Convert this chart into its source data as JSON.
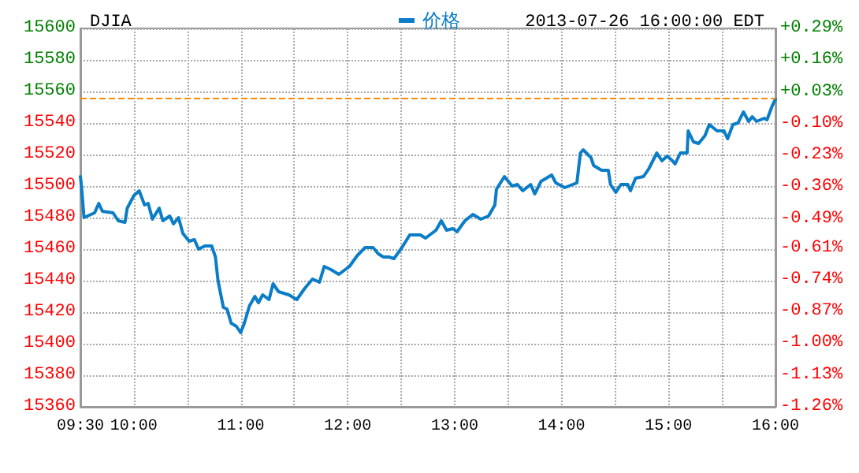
{
  "chart_data": {
    "type": "line",
    "title": "DJIA",
    "subtitle": "2013-07-26 16:00:00 EDT",
    "legend": "top",
    "grid": true,
    "marker": "none",
    "line_style": "solid",
    "x": [
      9.5,
      9.51,
      9.534,
      9.633,
      9.672,
      9.706,
      9.805,
      9.854,
      9.917,
      9.938,
      10.001,
      10.05,
      10.1,
      10.134,
      10.174,
      10.237,
      10.271,
      10.336,
      10.37,
      10.418,
      10.458,
      10.517,
      10.566,
      10.605,
      10.664,
      10.728,
      10.763,
      10.787,
      10.837,
      10.871,
      10.91,
      10.959,
      10.999,
      11.033,
      11.081,
      11.132,
      11.165,
      11.205,
      11.264,
      11.302,
      11.353,
      11.45,
      11.524,
      11.597,
      11.671,
      11.736,
      11.78,
      11.843,
      11.917,
      12.016,
      12.09,
      12.163,
      12.237,
      12.286,
      12.334,
      12.384,
      12.433,
      12.507,
      12.58,
      12.679,
      12.728,
      12.826,
      12.875,
      12.924,
      12.983,
      13.022,
      13.096,
      13.17,
      13.244,
      13.317,
      13.376,
      13.391,
      13.465,
      13.538,
      13.587,
      13.637,
      13.711,
      13.749,
      13.808,
      13.858,
      13.907,
      13.946,
      14.029,
      14.143,
      14.176,
      14.202,
      14.275,
      14.3,
      14.374,
      14.437,
      14.457,
      14.507,
      14.555,
      14.619,
      14.644,
      14.692,
      14.766,
      14.816,
      14.89,
      14.938,
      14.987,
      15.037,
      15.061,
      15.111,
      15.174,
      15.184,
      15.233,
      15.282,
      15.341,
      15.381,
      15.454,
      15.518,
      15.553,
      15.602,
      15.65,
      15.7,
      15.749,
      15.783,
      15.823,
      15.896,
      15.921,
      15.97,
      16
    ],
    "series": [
      {
        "name": "价格",
        "color": "#0b7dc7",
        "values": [
          15506,
          15500,
          15480,
          15483,
          15489,
          15484,
          15483,
          15478,
          15477,
          15486,
          15494,
          15497,
          15488,
          15489,
          15479,
          15486,
          15478,
          15481,
          15476,
          15480,
          15470,
          15465,
          15466,
          15460,
          15462,
          15462,
          15455,
          15440,
          15423,
          15422,
          15413,
          15411,
          15407,
          15413,
          15424,
          15430,
          15426,
          15431,
          15428,
          15438,
          15433,
          15431,
          15428,
          15435,
          15441,
          15439,
          15449,
          15447,
          15444,
          15449,
          15456,
          15461,
          15461,
          15457,
          15455,
          15455,
          15454,
          15461,
          15469,
          15469,
          15467,
          15472,
          15478,
          15472,
          15473,
          15471,
          15478,
          15482,
          15479,
          15481,
          15488,
          15498,
          15506,
          15500,
          15501,
          15497,
          15501,
          15495,
          15503,
          15505,
          15507,
          15502,
          15499,
          15502,
          15521,
          15523,
          15518,
          15513,
          15510,
          15510,
          15501,
          15496,
          15501,
          15501,
          15497,
          15505,
          15506,
          15511,
          15521,
          15516,
          15519,
          15516,
          15514,
          15521,
          15521,
          15535,
          15528,
          15527,
          15532,
          15539,
          15535,
          15535,
          15530,
          15539,
          15540,
          15547,
          15541,
          15544,
          15541,
          15543,
          15542,
          15551,
          15555
        ]
      }
    ],
    "xlim": [
      9.5,
      16
    ],
    "xticks": [
      {
        "value": 9.5,
        "label": "09:30"
      },
      {
        "value": 10,
        "label": "10:00"
      },
      {
        "value": 10.5,
        "label": null
      },
      {
        "value": 11,
        "label": "11:00"
      },
      {
        "value": 11.5,
        "label": null
      },
      {
        "value": 12,
        "label": "12:00"
      },
      {
        "value": 12.5,
        "label": null
      },
      {
        "value": 13,
        "label": "13:00"
      },
      {
        "value": 13.5,
        "label": null
      },
      {
        "value": 14,
        "label": "14:00"
      },
      {
        "value": 14.5,
        "label": null
      },
      {
        "value": 15,
        "label": "15:00"
      },
      {
        "value": 15.5,
        "label": null
      },
      {
        "value": 16,
        "label": "16:00"
      }
    ],
    "ylim": [
      15360,
      15600
    ],
    "yticks": [
      15360,
      15380,
      15400,
      15420,
      15440,
      15460,
      15480,
      15500,
      15520,
      15540,
      15560,
      15580,
      15600
    ],
    "y2lim": [
      -1.26,
      0.29
    ],
    "y2ticks": [
      {
        "value": -1.26,
        "label": "-1.26%"
      },
      {
        "value": -1.13,
        "label": "-1.13%"
      },
      {
        "value": -1.0,
        "label": "-1.00%"
      },
      {
        "value": -0.87,
        "label": "-0.87%"
      },
      {
        "value": -0.74,
        "label": "-0.74%"
      },
      {
        "value": -0.61,
        "label": "-0.61%"
      },
      {
        "value": -0.49,
        "label": "-0.49%"
      },
      {
        "value": -0.36,
        "label": "-0.36%"
      },
      {
        "value": -0.23,
        "label": "-0.23%"
      },
      {
        "value": -0.1,
        "label": "-0.10%"
      },
      {
        "value": 0.03,
        "label": "+0.03%"
      },
      {
        "value": 0.16,
        "label": "+0.16%"
      },
      {
        "value": 0.29,
        "label": "+0.29%"
      }
    ],
    "ref_lines": [
      {
        "axis": "y",
        "value": 15556,
        "color": "#ff8c00",
        "line_style": "dashed"
      }
    ]
  }
}
